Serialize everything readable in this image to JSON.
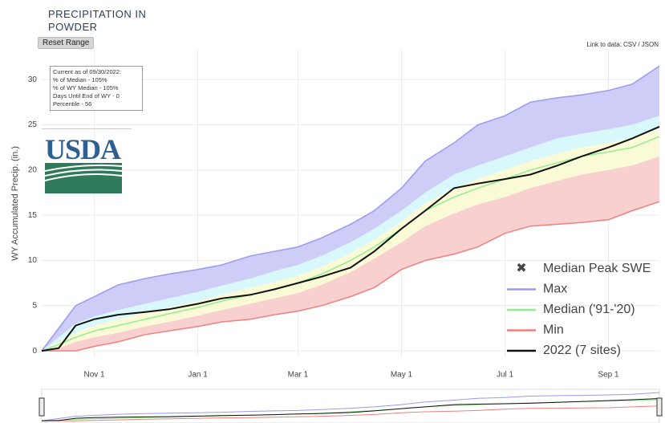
{
  "chart_data": {
    "type": "line",
    "title": "PRECIPITATION IN POWDER",
    "y_label": "WY Accumulated Precip. (in.)",
    "x": [
      0,
      10,
      20,
      31,
      45,
      61,
      75,
      92,
      106,
      123,
      137,
      151,
      165,
      182,
      196,
      212,
      226,
      243,
      257,
      273,
      288,
      304,
      318,
      334,
      348,
      364
    ],
    "xlim": [
      0,
      364
    ],
    "xticks": [
      {
        "value": 31,
        "label": "Nov 1"
      },
      {
        "value": 92,
        "label": "Jan 1"
      },
      {
        "value": 151,
        "label": "Mar 1"
      },
      {
        "value": 212,
        "label": "May 1"
      },
      {
        "value": 273,
        "label": "Jul 1"
      },
      {
        "value": 334,
        "label": "Sep 1"
      }
    ],
    "ylim": [
      -0.7,
      33.3
    ],
    "yticks": [
      0,
      5,
      10,
      15,
      20,
      25,
      30
    ],
    "grid": true,
    "legend": "bottom-right",
    "series": [
      {
        "name": "Max",
        "color": "#9a9af0",
        "fill": "#cdcdf8",
        "values": [
          0,
          2.5,
          5,
          6,
          7.3,
          8,
          8.5,
          9,
          9.5,
          10.5,
          11,
          11.5,
          12.5,
          14,
          15.5,
          18,
          21,
          23,
          25,
          26,
          27.5,
          28,
          28.3,
          28.8,
          29.5,
          31.5
        ]
      },
      {
        "fill": "#d8f8fb",
        "values": [
          0,
          1.5,
          3,
          3.8,
          4.5,
          5.2,
          5.8,
          6.5,
          7.2,
          8,
          8.8,
          9.5,
          10.5,
          12,
          13.5,
          15.5,
          17.5,
          19.5,
          20.5,
          21.5,
          22.5,
          23.5,
          24,
          24.5,
          25,
          26
        ]
      },
      {
        "fill": "#fbfad6",
        "values": [
          0,
          1,
          2,
          2.8,
          3.5,
          4.2,
          4.8,
          5.5,
          6.2,
          7,
          7.6,
          8.3,
          9.3,
          10.8,
          12.3,
          14.3,
          16.3,
          18,
          19,
          20,
          21,
          21.8,
          22.5,
          23,
          23.5,
          24.5
        ]
      },
      {
        "name": "Median ('91-'20)",
        "color": "#90ee90",
        "fill": "#fbfad6",
        "values": [
          0,
          0.7,
          1.5,
          2.2,
          2.8,
          3.5,
          4.1,
          4.8,
          5.5,
          6.2,
          6.8,
          7.5,
          8.5,
          10,
          11.5,
          13.5,
          15.5,
          17,
          18,
          19,
          20,
          20.8,
          21.5,
          22,
          22.5,
          23.7
        ]
      },
      {
        "fill": "#f9d0d0",
        "values": [
          0,
          0.3,
          1,
          1.5,
          2,
          2.7,
          3.2,
          3.9,
          4.5,
          5.2,
          5.8,
          6.4,
          7.3,
          8.7,
          10.2,
          12,
          13.8,
          15.2,
          16.2,
          17,
          18,
          18.8,
          19.5,
          20,
          20.5,
          21.5
        ]
      },
      {
        "name": "Min",
        "color": "#f08080",
        "values": [
          0,
          0,
          0,
          0.5,
          1,
          1.8,
          2.2,
          2.7,
          3.2,
          3.5,
          4,
          4.4,
          5,
          6,
          7,
          9,
          10,
          10.7,
          11.5,
          13,
          13.8,
          14,
          14.2,
          14.5,
          15.5,
          16.5
        ]
      },
      {
        "name": "2022 (7 sites)",
        "color": "#111111",
        "values": [
          0,
          0.3,
          2.8,
          3.5,
          4,
          4.3,
          4.6,
          5.2,
          5.8,
          6.2,
          6.8,
          7.5,
          8.2,
          9.2,
          11,
          13.5,
          15.5,
          18,
          18.5,
          19,
          19.5,
          20.5,
          21.5,
          22.5,
          23.5,
          24.8
        ]
      }
    ],
    "peak_marker": {
      "name": "Median Peak SWE",
      "color": "#44dd44"
    },
    "info": [
      "Current as of 09/30/2022:",
      "% of Median - 105%",
      "% of WY Median - 105%",
      "Days Until End of WY - 0",
      "Percentile - 56"
    ]
  },
  "controls": {
    "reset": "Reset Range",
    "link_label": "Link to data:",
    "csv": "CSV",
    "separator": "/",
    "json": "JSON"
  },
  "logo": "USDA"
}
